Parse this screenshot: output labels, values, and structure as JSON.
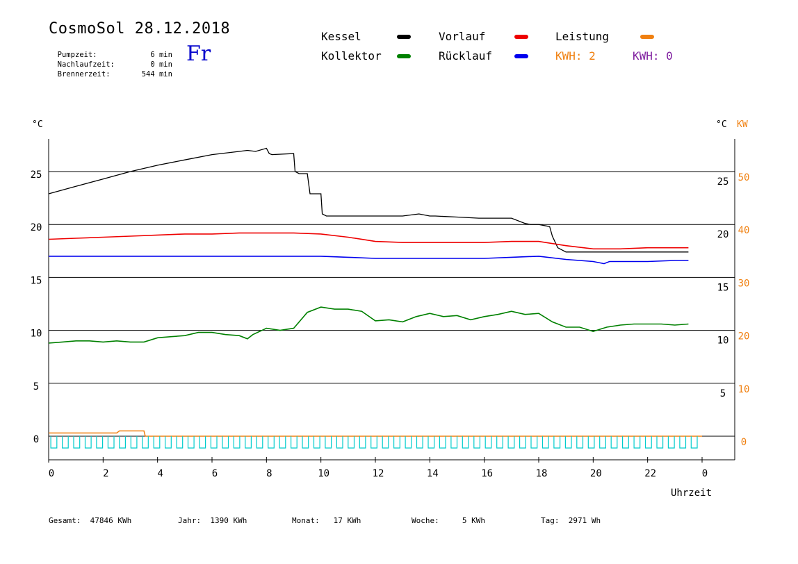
{
  "header": {
    "title": "CosmoSol 28.12.2018",
    "weekday": "Fr",
    "stats": [
      {
        "label": "Pumpzeit:",
        "value": "6",
        "unit": "min"
      },
      {
        "label": "Nachlaufzeit:",
        "value": "0",
        "unit": "min"
      },
      {
        "label": "Brennerzeit:",
        "value": "544",
        "unit": "min"
      }
    ]
  },
  "legend": {
    "kessel": {
      "label": "Kessel",
      "color": "#000000"
    },
    "vorlauf": {
      "label": "Vorlauf",
      "color": "#ee0000"
    },
    "leistung": {
      "label": "Leistung",
      "color": "#f08010"
    },
    "kollektor": {
      "label": "Kollektor",
      "color": "#008000"
    },
    "ruecklauf": {
      "label": "Rücklauf",
      "color": "#0000ee"
    },
    "kwh1": {
      "label": "KWH: 2",
      "color": "#f08010"
    },
    "kwh2": {
      "label": "KWH: 0",
      "color": "#8020a0"
    }
  },
  "axes": {
    "left_unit": "°C",
    "right_unit_c": "°C",
    "right_unit_kw": "KW",
    "xlabel": "Uhrzeit"
  },
  "footer": [
    {
      "label": "Gesamt:",
      "value": "47846 KWh"
    },
    {
      "label": "Jahr:",
      "value": "1390 KWh"
    },
    {
      "label": "Monat:",
      "value": "17 KWh"
    },
    {
      "label": "Woche:",
      "value": "5 KWh"
    },
    {
      "label": "Tag:",
      "value": "2971 Wh"
    }
  ],
  "chart_data": {
    "type": "line",
    "xlabel": "Uhrzeit",
    "ylabel": "°C",
    "x_ticks": [
      "0",
      "2",
      "4",
      "6",
      "8",
      "10",
      "12",
      "14",
      "16",
      "18",
      "20",
      "22",
      "0"
    ],
    "xlim": [
      0,
      24
    ],
    "ylim": [
      -2,
      28
    ],
    "y_ticks_left": [
      0,
      5,
      10,
      15,
      20,
      25
    ],
    "y_ticks_right_c": [
      5,
      10,
      15,
      20,
      25
    ],
    "y_ticks_right_kw": [
      0,
      10,
      20,
      30,
      40,
      50
    ],
    "grid": "horizontal",
    "series": [
      {
        "name": "Kessel",
        "color": "#000000",
        "x": [
          0,
          1,
          2,
          3,
          4,
          5,
          6,
          7,
          7.3,
          7.6,
          8.0,
          8.1,
          8.2,
          9.0,
          9.05,
          9.2,
          9.5,
          9.6,
          10.0,
          10.05,
          10.2,
          11,
          12,
          13,
          13.3,
          13.6,
          13.8,
          14,
          14.2,
          15,
          15.8,
          16,
          17.0,
          17.5,
          17.7,
          18.0,
          18.4,
          18.5,
          18.7,
          19,
          20,
          21,
          22,
          23,
          23.5
        ],
        "y": [
          22.9,
          23.6,
          24.3,
          25.0,
          25.6,
          26.1,
          26.6,
          26.9,
          27.0,
          26.9,
          27.2,
          26.7,
          26.6,
          26.7,
          25.0,
          24.8,
          24.8,
          22.9,
          22.9,
          21.0,
          20.8,
          20.8,
          20.8,
          20.8,
          20.9,
          21.0,
          20.9,
          20.8,
          20.8,
          20.7,
          20.6,
          20.6,
          20.6,
          20.1,
          20.0,
          20.0,
          19.8,
          18.9,
          17.8,
          17.4,
          17.4,
          17.4,
          17.4,
          17.4,
          17.4
        ]
      },
      {
        "name": "Vorlauf",
        "color": "#ee0000",
        "x": [
          0,
          1,
          2,
          3,
          4,
          5,
          6,
          7,
          8,
          9,
          10,
          11,
          12,
          13,
          14,
          15,
          16,
          17,
          18,
          19,
          20,
          21,
          22,
          23,
          23.5
        ],
        "y": [
          18.6,
          18.7,
          18.8,
          18.9,
          19.0,
          19.1,
          19.1,
          19.2,
          19.2,
          19.2,
          19.1,
          18.8,
          18.4,
          18.3,
          18.3,
          18.3,
          18.3,
          18.4,
          18.4,
          18.0,
          17.7,
          17.7,
          17.8,
          17.8,
          17.8
        ]
      },
      {
        "name": "Rücklauf",
        "color": "#0000ee",
        "x": [
          0,
          1,
          2,
          3,
          4,
          5,
          6,
          7,
          8,
          9,
          10,
          11,
          12,
          13,
          14,
          15,
          16,
          17,
          18,
          19,
          20,
          20.4,
          20.6,
          21,
          22,
          23,
          23.5
        ],
        "y": [
          17.0,
          17.0,
          17.0,
          17.0,
          17.0,
          17.0,
          17.0,
          17.0,
          17.0,
          17.0,
          17.0,
          16.9,
          16.8,
          16.8,
          16.8,
          16.8,
          16.8,
          16.9,
          17.0,
          16.7,
          16.5,
          16.3,
          16.5,
          16.5,
          16.5,
          16.6,
          16.6
        ]
      },
      {
        "name": "Kollektor",
        "color": "#008000",
        "x": [
          0,
          0.5,
          1,
          1.5,
          2,
          2.5,
          3,
          3.5,
          4,
          4.5,
          5,
          5.5,
          6,
          6.5,
          7,
          7.3,
          7.5,
          8,
          8.5,
          9,
          9.5,
          10,
          10.5,
          11,
          11.5,
          12,
          12.5,
          13,
          13.5,
          14,
          14.5,
          15,
          15.5,
          16,
          16.5,
          17,
          17.5,
          18,
          18.5,
          19,
          19.5,
          20,
          20.5,
          21,
          21.5,
          22,
          22.5,
          23,
          23.5
        ],
        "y": [
          8.8,
          8.9,
          9.0,
          9.0,
          8.9,
          9.0,
          8.9,
          8.9,
          9.3,
          9.4,
          9.5,
          9.8,
          9.8,
          9.6,
          9.5,
          9.2,
          9.6,
          10.2,
          10.0,
          10.2,
          11.7,
          12.2,
          12.0,
          12.0,
          11.8,
          10.9,
          11.0,
          10.8,
          11.3,
          11.6,
          11.3,
          11.4,
          11.0,
          11.3,
          11.5,
          11.8,
          11.5,
          11.6,
          10.8,
          10.3,
          10.3,
          9.9,
          10.3,
          10.5,
          10.6,
          10.6,
          10.6,
          10.5,
          10.6
        ]
      },
      {
        "name": "Leistung",
        "color": "#f08010",
        "x": [
          0,
          2.5,
          2.6,
          3.5,
          3.55,
          24
        ],
        "y": [
          0.3,
          0.3,
          0.5,
          0.5,
          0,
          0
        ]
      }
    ]
  }
}
